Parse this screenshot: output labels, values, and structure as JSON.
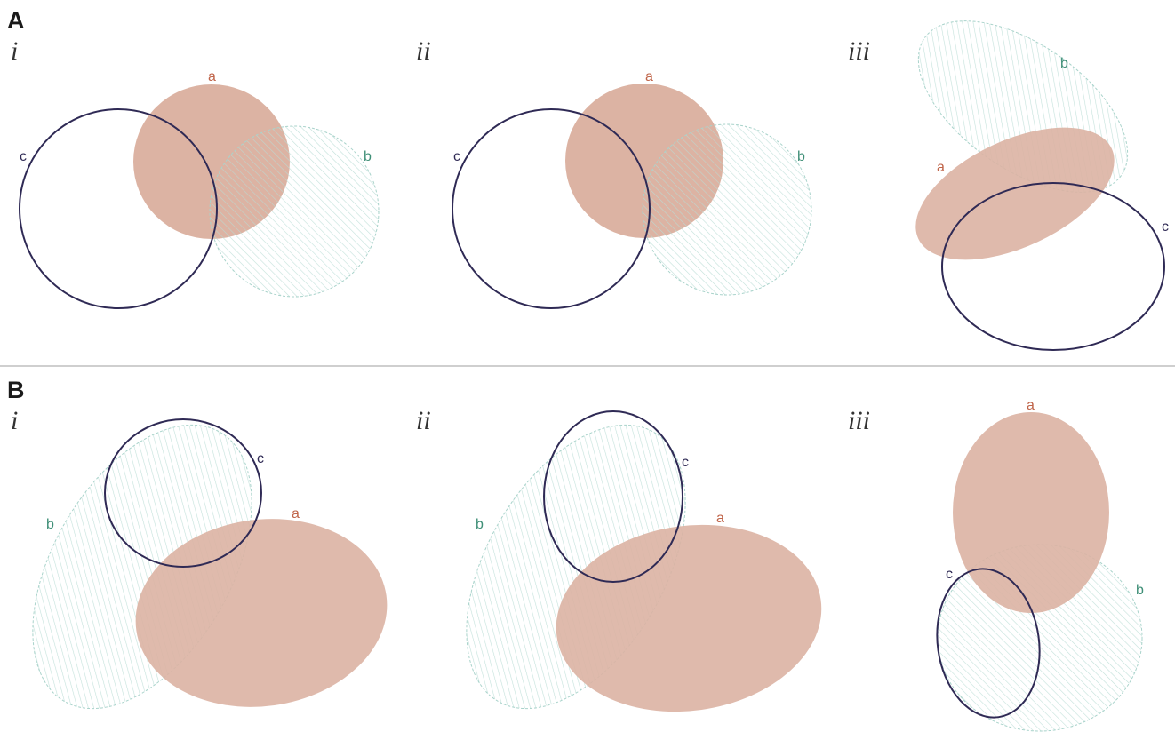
{
  "colors": {
    "set_a_fill": "#dcb3a3",
    "set_a_label": "#c0654a",
    "set_b_stroke": "#a9d3cb",
    "set_b_label": "#3f8f77",
    "set_c_stroke": "#2f2a55",
    "set_c_label": "#2f2a55",
    "divider": "#cfcfcf"
  },
  "sections": [
    {
      "letter": "A",
      "panels": [
        {
          "numeral": "i",
          "labels": {
            "a": "a",
            "b": "b",
            "c": "c"
          }
        },
        {
          "numeral": "ii",
          "labels": {
            "a": "a",
            "b": "b",
            "c": "c"
          }
        },
        {
          "numeral": "iii",
          "labels": {
            "a": "a",
            "b": "b",
            "c": "c"
          }
        }
      ]
    },
    {
      "letter": "B",
      "panels": [
        {
          "numeral": "i",
          "labels": {
            "a": "a",
            "b": "b",
            "c": "c"
          }
        },
        {
          "numeral": "ii",
          "labels": {
            "a": "a",
            "b": "b",
            "c": "c"
          }
        },
        {
          "numeral": "iii",
          "labels": {
            "a": "a",
            "b": "b",
            "c": "c"
          }
        }
      ]
    }
  ]
}
